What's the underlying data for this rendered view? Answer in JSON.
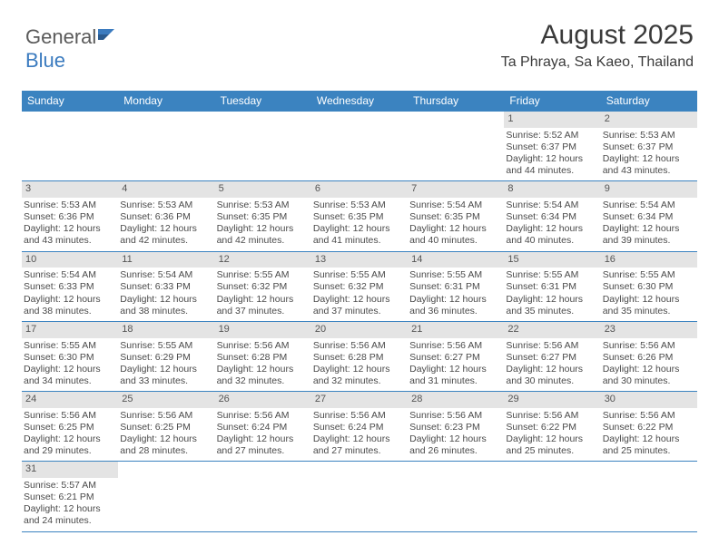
{
  "logo": {
    "part1": "General",
    "part2": "Blue"
  },
  "title": "August 2025",
  "location": "Ta Phraya, Sa Kaeo, Thailand",
  "colors": {
    "header_bar": "#3b83c0",
    "daynum_bg": "#e4e4e4",
    "text": "#3a3a3a",
    "line": "#3b83c0"
  },
  "day_names": [
    "Sunday",
    "Monday",
    "Tuesday",
    "Wednesday",
    "Thursday",
    "Friday",
    "Saturday"
  ],
  "weeks": [
    [
      null,
      null,
      null,
      null,
      null,
      {
        "n": "1",
        "sr": "5:52 AM",
        "ss": "6:37 PM",
        "dl": "12 hours and 44 minutes."
      },
      {
        "n": "2",
        "sr": "5:53 AM",
        "ss": "6:37 PM",
        "dl": "12 hours and 43 minutes."
      }
    ],
    [
      {
        "n": "3",
        "sr": "5:53 AM",
        "ss": "6:36 PM",
        "dl": "12 hours and 43 minutes."
      },
      {
        "n": "4",
        "sr": "5:53 AM",
        "ss": "6:36 PM",
        "dl": "12 hours and 42 minutes."
      },
      {
        "n": "5",
        "sr": "5:53 AM",
        "ss": "6:35 PM",
        "dl": "12 hours and 42 minutes."
      },
      {
        "n": "6",
        "sr": "5:53 AM",
        "ss": "6:35 PM",
        "dl": "12 hours and 41 minutes."
      },
      {
        "n": "7",
        "sr": "5:54 AM",
        "ss": "6:35 PM",
        "dl": "12 hours and 40 minutes."
      },
      {
        "n": "8",
        "sr": "5:54 AM",
        "ss": "6:34 PM",
        "dl": "12 hours and 40 minutes."
      },
      {
        "n": "9",
        "sr": "5:54 AM",
        "ss": "6:34 PM",
        "dl": "12 hours and 39 minutes."
      }
    ],
    [
      {
        "n": "10",
        "sr": "5:54 AM",
        "ss": "6:33 PM",
        "dl": "12 hours and 38 minutes."
      },
      {
        "n": "11",
        "sr": "5:54 AM",
        "ss": "6:33 PM",
        "dl": "12 hours and 38 minutes."
      },
      {
        "n": "12",
        "sr": "5:55 AM",
        "ss": "6:32 PM",
        "dl": "12 hours and 37 minutes."
      },
      {
        "n": "13",
        "sr": "5:55 AM",
        "ss": "6:32 PM",
        "dl": "12 hours and 37 minutes."
      },
      {
        "n": "14",
        "sr": "5:55 AM",
        "ss": "6:31 PM",
        "dl": "12 hours and 36 minutes."
      },
      {
        "n": "15",
        "sr": "5:55 AM",
        "ss": "6:31 PM",
        "dl": "12 hours and 35 minutes."
      },
      {
        "n": "16",
        "sr": "5:55 AM",
        "ss": "6:30 PM",
        "dl": "12 hours and 35 minutes."
      }
    ],
    [
      {
        "n": "17",
        "sr": "5:55 AM",
        "ss": "6:30 PM",
        "dl": "12 hours and 34 minutes."
      },
      {
        "n": "18",
        "sr": "5:55 AM",
        "ss": "6:29 PM",
        "dl": "12 hours and 33 minutes."
      },
      {
        "n": "19",
        "sr": "5:56 AM",
        "ss": "6:28 PM",
        "dl": "12 hours and 32 minutes."
      },
      {
        "n": "20",
        "sr": "5:56 AM",
        "ss": "6:28 PM",
        "dl": "12 hours and 32 minutes."
      },
      {
        "n": "21",
        "sr": "5:56 AM",
        "ss": "6:27 PM",
        "dl": "12 hours and 31 minutes."
      },
      {
        "n": "22",
        "sr": "5:56 AM",
        "ss": "6:27 PM",
        "dl": "12 hours and 30 minutes."
      },
      {
        "n": "23",
        "sr": "5:56 AM",
        "ss": "6:26 PM",
        "dl": "12 hours and 30 minutes."
      }
    ],
    [
      {
        "n": "24",
        "sr": "5:56 AM",
        "ss": "6:25 PM",
        "dl": "12 hours and 29 minutes."
      },
      {
        "n": "25",
        "sr": "5:56 AM",
        "ss": "6:25 PM",
        "dl": "12 hours and 28 minutes."
      },
      {
        "n": "26",
        "sr": "5:56 AM",
        "ss": "6:24 PM",
        "dl": "12 hours and 27 minutes."
      },
      {
        "n": "27",
        "sr": "5:56 AM",
        "ss": "6:24 PM",
        "dl": "12 hours and 27 minutes."
      },
      {
        "n": "28",
        "sr": "5:56 AM",
        "ss": "6:23 PM",
        "dl": "12 hours and 26 minutes."
      },
      {
        "n": "29",
        "sr": "5:56 AM",
        "ss": "6:22 PM",
        "dl": "12 hours and 25 minutes."
      },
      {
        "n": "30",
        "sr": "5:56 AM",
        "ss": "6:22 PM",
        "dl": "12 hours and 25 minutes."
      }
    ],
    [
      {
        "n": "31",
        "sr": "5:57 AM",
        "ss": "6:21 PM",
        "dl": "12 hours and 24 minutes."
      },
      null,
      null,
      null,
      null,
      null,
      null
    ]
  ],
  "labels": {
    "sunrise": "Sunrise: ",
    "sunset": "Sunset: ",
    "daylight": "Daylight: "
  }
}
